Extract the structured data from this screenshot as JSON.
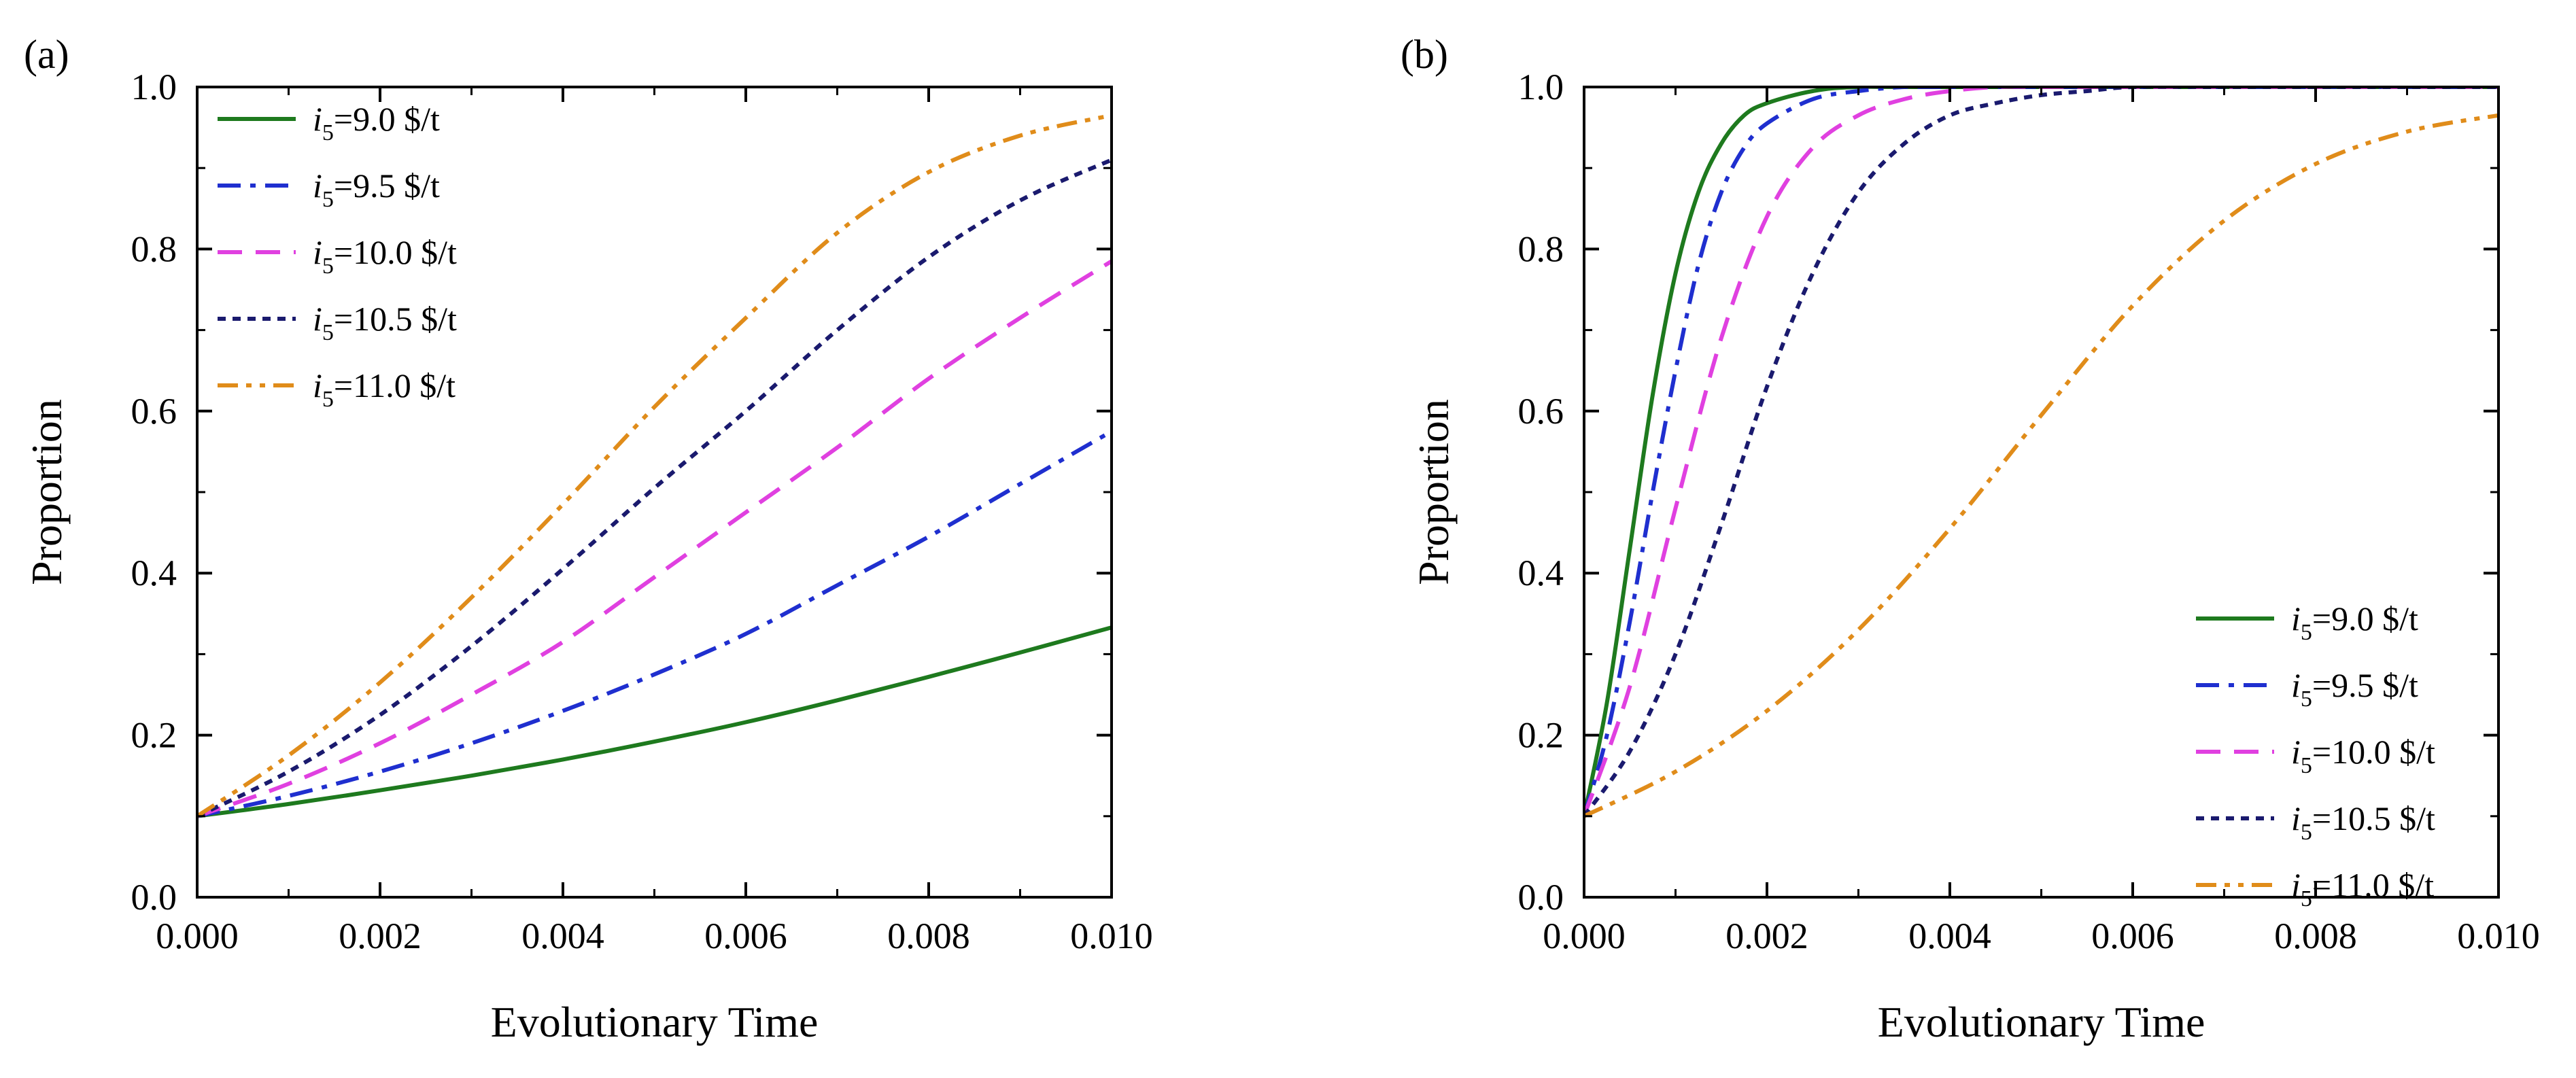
{
  "chart_data": [
    {
      "type": "line",
      "panel_label": "(a)",
      "xlabel": "Evolutionary Time",
      "ylabel": "Proportion",
      "xlim": [
        0,
        0.01
      ],
      "ylim": [
        0,
        1.0
      ],
      "xticks": [
        "0.000",
        "0.002",
        "0.004",
        "0.006",
        "0.008",
        "0.010"
      ],
      "yticks": [
        "0.0",
        "0.2",
        "0.4",
        "0.6",
        "0.8",
        "1.0"
      ],
      "grid": false,
      "legend_position": "top-left",
      "series": [
        {
          "name": "i5=9.0 $/t",
          "name_italic": "i",
          "name_sub": "5",
          "name_rest": "=9.0  $/t",
          "color": "#1e7a1e",
          "dash": "solid",
          "x": [
            0,
            0.001,
            0.002,
            0.003,
            0.004,
            0.005,
            0.006,
            0.007,
            0.008,
            0.009,
            0.01
          ],
          "y": [
            0.1,
            0.115,
            0.132,
            0.15,
            0.17,
            0.192,
            0.216,
            0.243,
            0.272,
            0.302,
            0.333
          ]
        },
        {
          "name": "i5=9.5 $/t",
          "name_italic": "i",
          "name_sub": "5",
          "name_rest": "=9.5  $/t",
          "color": "#1f2fcf",
          "dash": "dashdot",
          "x": [
            0,
            0.001,
            0.002,
            0.003,
            0.004,
            0.005,
            0.006,
            0.007,
            0.008,
            0.009,
            0.01
          ],
          "y": [
            0.1,
            0.125,
            0.155,
            0.19,
            0.23,
            0.275,
            0.325,
            0.385,
            0.445,
            0.51,
            0.575
          ]
        },
        {
          "name": "i5=10.0 $/t",
          "name_italic": "i",
          "name_sub": "5",
          "name_rest": "=10.0  $/t",
          "color": "#e040e0",
          "dash": "dash",
          "x": [
            0,
            0.001,
            0.002,
            0.003,
            0.004,
            0.005,
            0.006,
            0.007,
            0.008,
            0.009,
            0.01
          ],
          "y": [
            0.1,
            0.14,
            0.19,
            0.25,
            0.315,
            0.395,
            0.475,
            0.555,
            0.64,
            0.715,
            0.785
          ]
        },
        {
          "name": "i5=10.5 $/t",
          "name_italic": "i",
          "name_sub": "5",
          "name_rest": "=10.5  $/t",
          "color": "#1a1a6e",
          "dash": "dot",
          "x": [
            0,
            0.001,
            0.002,
            0.003,
            0.004,
            0.005,
            0.006,
            0.007,
            0.008,
            0.009,
            0.01
          ],
          "y": [
            0.1,
            0.155,
            0.225,
            0.31,
            0.405,
            0.505,
            0.6,
            0.7,
            0.79,
            0.86,
            0.91
          ]
        },
        {
          "name": "i5=11.0 $/t",
          "name_italic": "i",
          "name_sub": "5",
          "name_rest": "=11.0  $/t",
          "color": "#e08c1a",
          "dash": "dashdotdot",
          "x": [
            0,
            0.001,
            0.002,
            0.003,
            0.004,
            0.005,
            0.006,
            0.007,
            0.008,
            0.009,
            0.01
          ],
          "y": [
            0.1,
            0.175,
            0.265,
            0.37,
            0.485,
            0.605,
            0.715,
            0.82,
            0.895,
            0.94,
            0.965
          ]
        }
      ]
    },
    {
      "type": "line",
      "panel_label": "(b)",
      "xlabel": "Evolutionary Time",
      "ylabel": "Proportion",
      "xlim": [
        0,
        0.01
      ],
      "ylim": [
        0,
        1.0
      ],
      "xticks": [
        "0.000",
        "0.002",
        "0.004",
        "0.006",
        "0.008",
        "0.010"
      ],
      "yticks": [
        "0.0",
        "0.2",
        "0.4",
        "0.6",
        "0.8",
        "1.0"
      ],
      "grid": false,
      "legend_position": "bottom-right",
      "series": [
        {
          "name": "i5=9.0 $/t",
          "name_italic": "i",
          "name_sub": "5",
          "name_rest": "=9.0  $/t",
          "color": "#1e7a1e",
          "dash": "solid",
          "x": [
            0,
            0.00025,
            0.0005,
            0.00075,
            0.001,
            0.00125,
            0.0015,
            0.00175,
            0.002,
            0.0025,
            0.003,
            0.004,
            0.01
          ],
          "y": [
            0.1,
            0.24,
            0.43,
            0.62,
            0.77,
            0.87,
            0.93,
            0.965,
            0.98,
            0.995,
            1.0,
            1.0,
            1.0
          ]
        },
        {
          "name": "i5=9.5 $/t",
          "name_italic": "i",
          "name_sub": "5",
          "name_rest": "=9.5  $/t",
          "color": "#1f2fcf",
          "dash": "dashdot",
          "x": [
            0,
            0.00025,
            0.0005,
            0.00075,
            0.001,
            0.00125,
            0.0015,
            0.00175,
            0.002,
            0.0025,
            0.003,
            0.0035,
            0.004,
            0.01
          ],
          "y": [
            0.1,
            0.2,
            0.34,
            0.5,
            0.65,
            0.78,
            0.87,
            0.925,
            0.955,
            0.985,
            0.995,
            1.0,
            1.0,
            1.0
          ]
        },
        {
          "name": "i5=10.0 $/t",
          "name_italic": "i",
          "name_sub": "5",
          "name_rest": "=10.0  $/t",
          "color": "#e040e0",
          "dash": "dash",
          "x": [
            0,
            0.0005,
            0.001,
            0.0015,
            0.002,
            0.0025,
            0.003,
            0.0035,
            0.004,
            0.0045,
            0.005,
            0.006,
            0.01
          ],
          "y": [
            0.1,
            0.26,
            0.48,
            0.69,
            0.84,
            0.925,
            0.965,
            0.985,
            0.995,
            1.0,
            1.0,
            1.0,
            1.0
          ]
        },
        {
          "name": "i5=10.5 $/t",
          "name_italic": "i",
          "name_sub": "5",
          "name_rest": "=10.5  $/t",
          "color": "#1a1a6e",
          "dash": "dot",
          "x": [
            0,
            0.0005,
            0.001,
            0.0015,
            0.002,
            0.0025,
            0.003,
            0.0035,
            0.004,
            0.0045,
            0.005,
            0.0055,
            0.006,
            0.007,
            0.01
          ],
          "y": [
            0.1,
            0.18,
            0.3,
            0.46,
            0.63,
            0.77,
            0.87,
            0.93,
            0.965,
            0.98,
            0.99,
            0.995,
            1.0,
            1.0,
            1.0
          ]
        },
        {
          "name": "i5=11.0 $/t",
          "name_italic": "i",
          "name_sub": "5",
          "name_rest": "=11.0  $/t",
          "color": "#e08c1a",
          "dash": "dashdotdot",
          "x": [
            0,
            0.001,
            0.002,
            0.003,
            0.004,
            0.005,
            0.006,
            0.007,
            0.008,
            0.009,
            0.01
          ],
          "y": [
            0.1,
            0.155,
            0.23,
            0.33,
            0.455,
            0.595,
            0.73,
            0.835,
            0.905,
            0.945,
            0.965
          ]
        }
      ]
    }
  ]
}
